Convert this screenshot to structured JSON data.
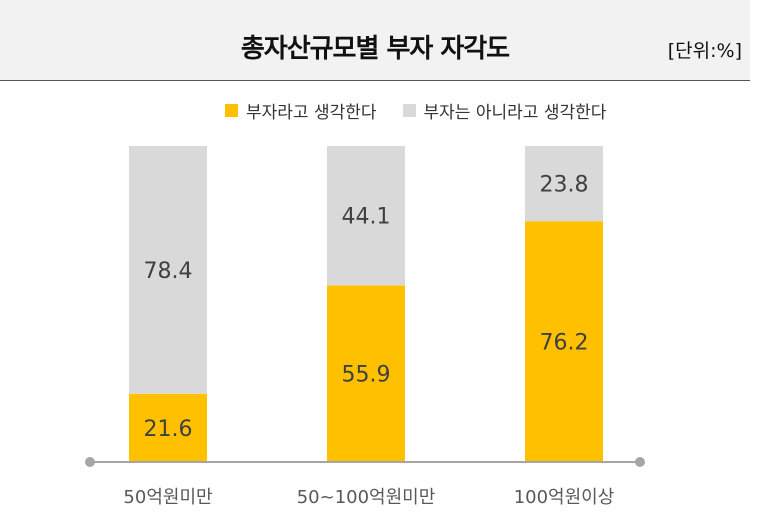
{
  "chart_data": {
    "type": "bar",
    "stacked": true,
    "percent": true,
    "title": "총자산규모별 부자 자각도",
    "unit": "[단위:%]",
    "categories": [
      "50억원미만",
      "50~100억원미만",
      "100억원이상"
    ],
    "series": [
      {
        "name": "부자라고 생각한다",
        "color": "#FFC000",
        "values": [
          21.6,
          55.9,
          76.2
        ]
      },
      {
        "name": "부자는 아니라고 생각한다",
        "color": "#D9D9D9",
        "values": [
          78.4,
          44.1,
          23.8
        ]
      }
    ],
    "ylim": [
      0,
      100
    ],
    "grid": false,
    "legend_position": "top"
  }
}
